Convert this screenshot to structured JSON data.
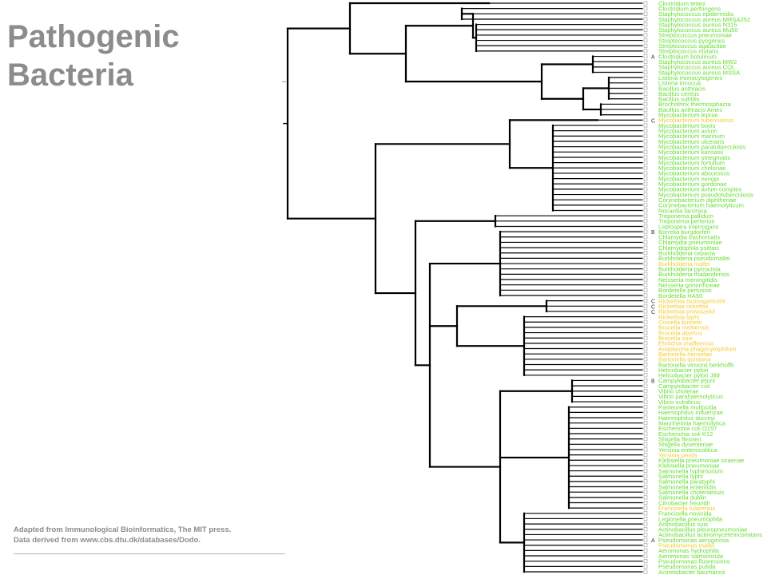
{
  "title": {
    "line1": "Pathogenic",
    "line2": "Bacteria"
  },
  "caption": {
    "line1": "Adapted from Immunological Bioinformatics, The MIT press.",
    "line2": "Data derived from www.cbs.dtu.dk/databases/Dodo."
  },
  "colors": {
    "text_gray": "#8c8c8c",
    "branch": "#000000",
    "leaf_green": "#66dd33",
    "leaf_yellow": "#f2cc33",
    "marker_box": "#999999"
  },
  "leaves": [
    {
      "label": "Clostridium tetani",
      "class": "",
      "color": "green"
    },
    {
      "label": "Clostridium perfringens",
      "class": "",
      "color": "green"
    },
    {
      "label": "Staphylococcus epidermidis",
      "class": "",
      "color": "green"
    },
    {
      "label": "Staphylococcus aureus MRSA252",
      "class": "",
      "color": "green"
    },
    {
      "label": "Staphylococcus aureus N315",
      "class": "",
      "color": "green"
    },
    {
      "label": "Staphylococcus aureus Mu50",
      "class": "",
      "color": "green"
    },
    {
      "label": "Streptococcus pneumoniae",
      "class": "",
      "color": "green"
    },
    {
      "label": "Streptococcus pyogenes",
      "class": "",
      "color": "green"
    },
    {
      "label": "Streptococcus agalactiae",
      "class": "",
      "color": "green"
    },
    {
      "label": "Streptococcus mutans",
      "class": "",
      "color": "green"
    },
    {
      "label": "Clostridium botulinum",
      "class": "A",
      "color": "green"
    },
    {
      "label": "Staphylococcus aureus MW2",
      "class": "",
      "color": "green"
    },
    {
      "label": "Staphylococcus aureus COL",
      "class": "",
      "color": "green"
    },
    {
      "label": "Staphylococcus aureus MSSA",
      "class": "",
      "color": "green"
    },
    {
      "label": "Listeria monocytogenes",
      "class": "",
      "color": "green"
    },
    {
      "label": "Listeria innocua",
      "class": "",
      "color": "green"
    },
    {
      "label": "Bacillus anthracis",
      "class": "",
      "color": "green"
    },
    {
      "label": "Bacillus cereus",
      "class": "",
      "color": "green"
    },
    {
      "label": "Bacillus subtilis",
      "class": "",
      "color": "green"
    },
    {
      "label": "Brochothrix thermosphacta",
      "class": "",
      "color": "green"
    },
    {
      "label": "Bacillus anthracis Ames",
      "class": "",
      "color": "green"
    },
    {
      "label": "Mycobacterium leprae",
      "class": "",
      "color": "green"
    },
    {
      "label": "Mycobacterium tuberculosis",
      "class": "C",
      "color": "yellow"
    },
    {
      "label": "Mycobacterium bovis",
      "class": "",
      "color": "green"
    },
    {
      "label": "Mycobacterium avium",
      "class": "",
      "color": "green"
    },
    {
      "label": "Mycobacterium marinum",
      "class": "",
      "color": "green"
    },
    {
      "label": "Mycobacterium ulcerans",
      "class": "",
      "color": "green"
    },
    {
      "label": "Mycobacterium paratuberculosis",
      "class": "",
      "color": "green"
    },
    {
      "label": "Mycobacterium kansasii",
      "class": "",
      "color": "green"
    },
    {
      "label": "Mycobacterium smegmatis",
      "class": "",
      "color": "green"
    },
    {
      "label": "Mycobacterium fortuitum",
      "class": "",
      "color": "green"
    },
    {
      "label": "Mycobacterium chelonae",
      "class": "",
      "color": "green"
    },
    {
      "label": "Mycobacterium abscessus",
      "class": "",
      "color": "green"
    },
    {
      "label": "Mycobacterium xenopi",
      "class": "",
      "color": "green"
    },
    {
      "label": "Mycobacterium gordonae",
      "class": "",
      "color": "green"
    },
    {
      "label": "Mycobacterium avium complex",
      "class": "",
      "color": "green"
    },
    {
      "label": "Mycobacterium pseudotuberculosis",
      "class": "",
      "color": "green"
    },
    {
      "label": "Corynebacterium diphtheriae",
      "class": "",
      "color": "green"
    },
    {
      "label": "Corynebacterium haemolyticum",
      "class": "",
      "color": "green"
    },
    {
      "label": "Nocardia farcinica",
      "class": "",
      "color": "green"
    },
    {
      "label": "Treponema pallidum",
      "class": "",
      "color": "green"
    },
    {
      "label": "Treponema pertenue",
      "class": "",
      "color": "green"
    },
    {
      "label": "Leptospira interrogans",
      "class": "",
      "color": "green"
    },
    {
      "label": "Borrelia burgdorferi",
      "class": "B",
      "color": "green"
    },
    {
      "label": "Chlamydia trachomatis",
      "class": "",
      "color": "green"
    },
    {
      "label": "Chlamydia pneumoniae",
      "class": "",
      "color": "green"
    },
    {
      "label": "Chlamydophila psittaci",
      "class": "",
      "color": "green"
    },
    {
      "label": "Burkholderia cepacia",
      "class": "",
      "color": "green"
    },
    {
      "label": "Burkholderia pseudomallei",
      "class": "",
      "color": "green"
    },
    {
      "label": "Burkholderia mallei",
      "class": "",
      "color": "yellow"
    },
    {
      "label": "Burkholderia pyrrocinia",
      "class": "",
      "color": "green"
    },
    {
      "label": "Burkholderia thailandensis",
      "class": "",
      "color": "green"
    },
    {
      "label": "Neisseria meningitidis",
      "class": "",
      "color": "green"
    },
    {
      "label": "Neisseria gonorrhoeae",
      "class": "",
      "color": "green"
    },
    {
      "label": "Bordetella pertussis",
      "class": "",
      "color": "green"
    },
    {
      "label": "Bordetella HA50",
      "class": "",
      "color": "green"
    },
    {
      "label": "Rickettsia tsutsugamushi",
      "class": "C",
      "color": "yellow"
    },
    {
      "label": "Rickettsia rickettsii",
      "class": "C",
      "color": "yellow"
    },
    {
      "label": "Rickettsia prowazekii",
      "class": "C",
      "color": "yellow"
    },
    {
      "label": "Rickettsia typhi",
      "class": "",
      "color": "yellow"
    },
    {
      "label": "Coxiella burnetii",
      "class": "",
      "color": "yellow"
    },
    {
      "label": "Brucella melitensis",
      "class": "",
      "color": "yellow"
    },
    {
      "label": "Brucella abortus",
      "class": "",
      "color": "yellow"
    },
    {
      "label": "Brucella suis",
      "class": "",
      "color": "yellow"
    },
    {
      "label": "Ehrlichia chaffeensis",
      "class": "",
      "color": "yellow"
    },
    {
      "label": "Anaplasma phagocytophilum",
      "class": "",
      "color": "yellow"
    },
    {
      "label": "Bartonella henselae",
      "class": "",
      "color": "yellow"
    },
    {
      "label": "Bartonella quintana",
      "class": "",
      "color": "yellow"
    },
    {
      "label": "Bartonella vinsonii berkhoffii",
      "class": "",
      "color": "green"
    },
    {
      "label": "Helicobacter pylori",
      "class": "",
      "color": "green"
    },
    {
      "label": "Helicobacter pylori J99",
      "class": "",
      "color": "green"
    },
    {
      "label": "Campylobacter jejuni",
      "class": "B",
      "color": "green"
    },
    {
      "label": "Campylobacter coli",
      "class": "",
      "color": "green"
    },
    {
      "label": "Vibrio cholerae",
      "class": "",
      "color": "green"
    },
    {
      "label": "Vibrio parahaemolyticus",
      "class": "",
      "color": "green"
    },
    {
      "label": "Vibrio vulnificus",
      "class": "",
      "color": "green"
    },
    {
      "label": "Pasteurella multocida",
      "class": "",
      "color": "green"
    },
    {
      "label": "Haemophilus influenzae",
      "class": "",
      "color": "green"
    },
    {
      "label": "Haemophilus ducreyi",
      "class": "",
      "color": "green"
    },
    {
      "label": "Mannheimia haemolytica",
      "class": "",
      "color": "green"
    },
    {
      "label": "Escherichia coli O157",
      "class": "",
      "color": "green"
    },
    {
      "label": "Escherichia coli K12",
      "class": "",
      "color": "green"
    },
    {
      "label": "Shigella flexneri",
      "class": "",
      "color": "green"
    },
    {
      "label": "Shigella dysenteriae",
      "class": "",
      "color": "green"
    },
    {
      "label": "Yersinia enterocolitica",
      "class": "",
      "color": "green"
    },
    {
      "label": "Yersinia pestis",
      "class": "",
      "color": "yellow"
    },
    {
      "label": "Klebsiella pneumoniae ozaenae",
      "class": "",
      "color": "green"
    },
    {
      "label": "Klebsiella pneumoniae",
      "class": "",
      "color": "green"
    },
    {
      "label": "Salmonella typhimurium",
      "class": "",
      "color": "green"
    },
    {
      "label": "Salmonella typhi",
      "class": "",
      "color": "green"
    },
    {
      "label": "Salmonella paratyphi",
      "class": "",
      "color": "green"
    },
    {
      "label": "Salmonella enteritidis",
      "class": "",
      "color": "green"
    },
    {
      "label": "Salmonella choleraesuis",
      "class": "",
      "color": "green"
    },
    {
      "label": "Salmonella dublin",
      "class": "",
      "color": "green"
    },
    {
      "label": "Citrobacter freundii",
      "class": "",
      "color": "green"
    },
    {
      "label": "Francisella tularensis",
      "class": "",
      "color": "yellow"
    },
    {
      "label": "Francisella novicida",
      "class": "",
      "color": "green"
    },
    {
      "label": "Legionella pneumophila",
      "class": "",
      "color": "green"
    },
    {
      "label": "Actinobacillus suis",
      "class": "",
      "color": "green"
    },
    {
      "label": "Actinobacillus pleuropneumoniae",
      "class": "",
      "color": "green"
    },
    {
      "label": "Actinobacillus actinomycetemcomitans",
      "class": "",
      "color": "green"
    },
    {
      "label": "Pseudomonas aeruginosa",
      "class": "A",
      "color": "green"
    },
    {
      "label": "Pseudomonas mallei",
      "class": "",
      "color": "yellow"
    },
    {
      "label": "Aeromonas hydrophila",
      "class": "",
      "color": "green"
    },
    {
      "label": "Aeromonas salmonicida",
      "class": "",
      "color": "green"
    },
    {
      "label": "Pseudomonas fluorescens",
      "class": "",
      "color": "green"
    },
    {
      "label": "Pseudomonas putida",
      "class": "",
      "color": "green"
    },
    {
      "label": "Acinetobacter baumannii",
      "class": "",
      "color": "green"
    }
  ]
}
